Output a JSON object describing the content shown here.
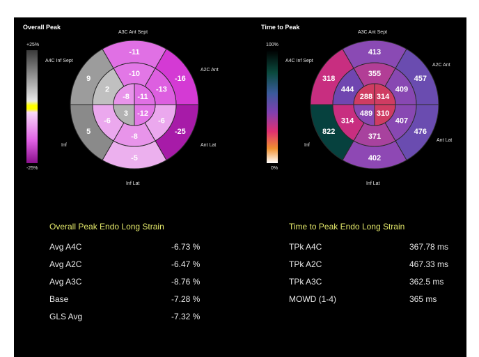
{
  "left_panel": {
    "title": "Overall Peak",
    "scale_top": "+25%",
    "scale_bottom": "-25%",
    "wall_labels": {
      "a3c_ant_sept": "A3C Ant Sept",
      "a2c_ant": "A2C Ant",
      "a4c_inf_sept": "A4C Inf Sept",
      "inf": "Inf",
      "ant_lat": "Ant Lat",
      "inf_lat": "Inf Lat"
    },
    "segments": {
      "basal": [
        "-11",
        "-16",
        "-25",
        "-5",
        "5",
        "9"
      ],
      "mid": [
        "-10",
        "-13",
        "-6",
        "-8",
        "-6",
        "2"
      ],
      "apical": [
        "-11",
        "-12",
        "3",
        "-8"
      ]
    },
    "colors": {
      "basal": [
        "#e070e4",
        "#d43ad4",
        "#a71ba8",
        "#ecb0ee",
        "#8a8a8a",
        "#9c9c9c"
      ],
      "mid": [
        "#e277e6",
        "#dd5fe0",
        "#eba8ee",
        "#e894ea",
        "#eba8ee",
        "#c0c0c0"
      ],
      "apical": [
        "#e070e4",
        "#e277e6",
        "#b2b2b2",
        "#e894ea"
      ]
    }
  },
  "right_panel": {
    "title": "Time to Peak",
    "scale_top": "100%",
    "scale_bottom": "0%",
    "wall_labels": {
      "a3c_ant_sept": "A3C Ant Sept",
      "a2c_ant": "A2C Ant",
      "a4c_inf_sept": "A4C Inf Sept",
      "inf": "Inf",
      "ant_lat": "Ant Lat",
      "inf_lat": "Inf Lat"
    },
    "segments": {
      "basal": [
        "413",
        "457",
        "476",
        "402",
        "822",
        "318"
      ],
      "mid": [
        "355",
        "409",
        "407",
        "371",
        "314",
        "444"
      ],
      "apical": [
        "314",
        "310",
        "489",
        "288"
      ]
    },
    "colors": {
      "basal": [
        "#8a4ab4",
        "#6a4cb0",
        "#6a4cb0",
        "#8e48b4",
        "#06413e",
        "#c82e80"
      ],
      "mid": [
        "#b23e96",
        "#8848b2",
        "#8848b2",
        "#a8429e",
        "#c82e80",
        "#7046b0"
      ],
      "apical": [
        "#cf3c62",
        "#cf3c62",
        "#8848b2",
        "#cf3c62"
      ]
    }
  },
  "strain_stats": {
    "title": "Overall Peak Endo Long Strain",
    "rows": [
      {
        "label": "Avg A4C",
        "value": "-6.73 %"
      },
      {
        "label": "Avg A2C",
        "value": "-6.47 %"
      },
      {
        "label": "Avg A3C",
        "value": "-8.76 %"
      },
      {
        "label": "Base",
        "value": "-7.28 %"
      },
      {
        "label": "GLS Avg",
        "value": "-7.32 %"
      }
    ]
  },
  "time_stats": {
    "title": "Time to Peak Endo Long Strain",
    "rows": [
      {
        "label": "TPk A4C",
        "value": "367.78 ms"
      },
      {
        "label": "TPk A2C",
        "value": "467.33 ms"
      },
      {
        "label": "TPk A3C",
        "value": "362.5 ms"
      },
      {
        "label": "MOWD (1-4)",
        "value": "365 ms"
      }
    ]
  }
}
